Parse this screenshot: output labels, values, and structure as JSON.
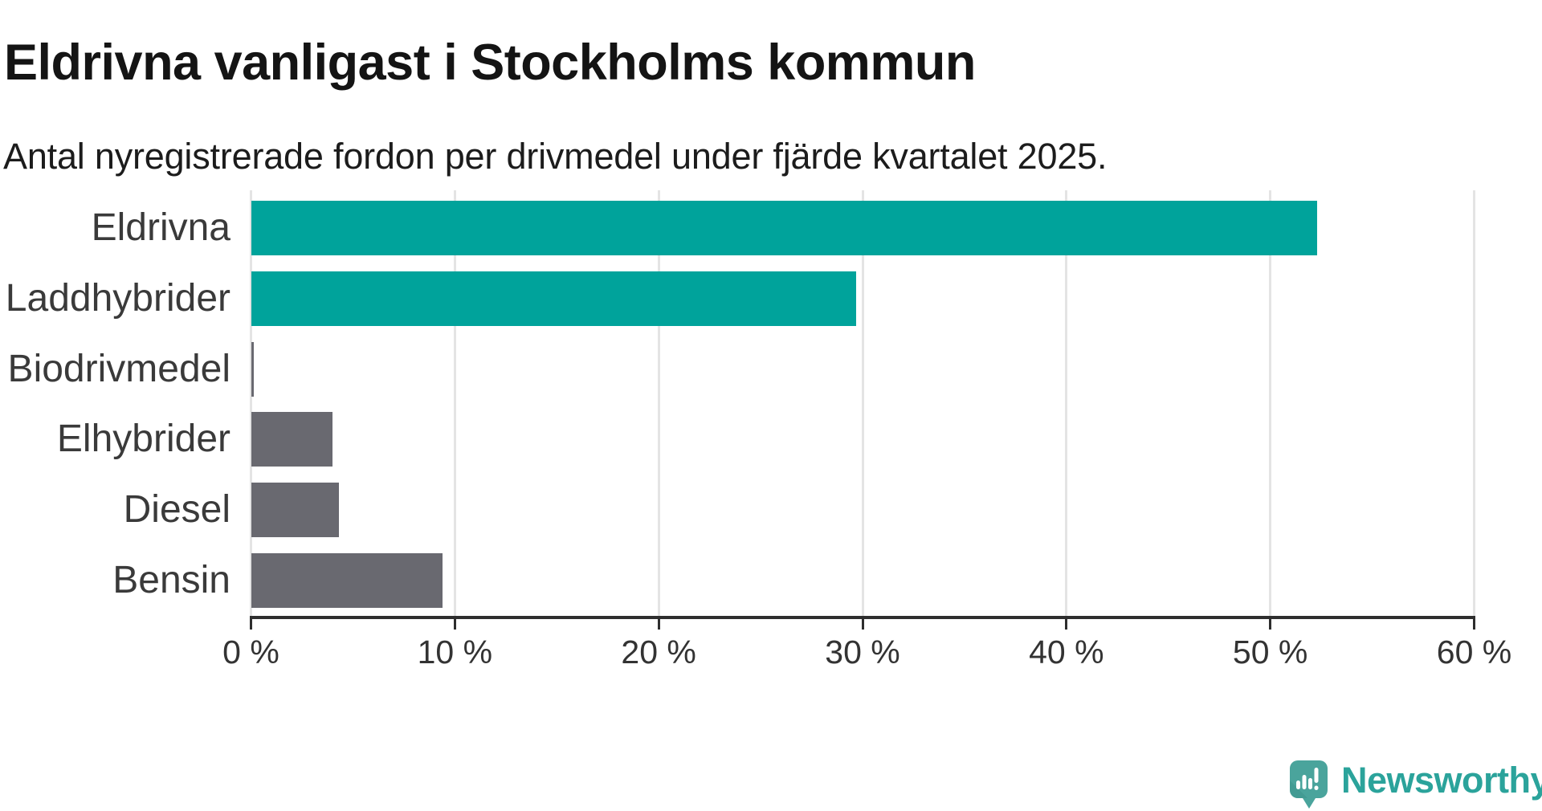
{
  "header": {
    "title": "Eldrivna vanligast i Stockholms kommun",
    "subtitle": "Antal nyregistrerade fordon per drivmedel under fjärde kvartalet 2025."
  },
  "chart_data": {
    "type": "bar",
    "orientation": "horizontal",
    "title": "Eldrivna vanligast i Stockholms kommun",
    "subtitle": "Antal nyregistrerade fordon per drivmedel under fjärde kvartalet 2025.",
    "categories": [
      "Eldrivna",
      "Laddhybrider",
      "Biodrivmedel",
      "Elhybrider",
      "Diesel",
      "Bensin"
    ],
    "values": [
      52.3,
      29.7,
      0.1,
      4.0,
      4.3,
      9.4
    ],
    "unit": "%",
    "bar_colors": [
      "#00a39b",
      "#00a39b",
      "#696970",
      "#696970",
      "#696970",
      "#696970"
    ],
    "highlight_color": "#00a39b",
    "default_color": "#696970",
    "xlabel": "",
    "ylabel": "",
    "xlim": [
      0,
      60
    ],
    "x_ticks": [
      {
        "value": 0,
        "label": "0 %"
      },
      {
        "value": 10,
        "label": "10 %"
      },
      {
        "value": 20,
        "label": "20 %"
      },
      {
        "value": 30,
        "label": "30 %"
      },
      {
        "value": 40,
        "label": "40 %"
      },
      {
        "value": 50,
        "label": "50 %"
      },
      {
        "value": 60,
        "label": "60 %"
      }
    ],
    "grid": true,
    "legend": "none"
  },
  "branding": {
    "logo_text": "Newsworthy",
    "text_color": "#2ba39b",
    "icon_color": "#4aa49c",
    "icon_shade_color": "#3d938c"
  }
}
